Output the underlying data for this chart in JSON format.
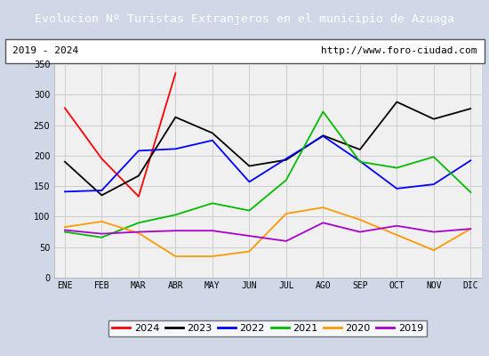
{
  "title": "Evolucion Nº Turistas Extranjeros en el municipio de Azuaga",
  "subtitle_left": "2019 - 2024",
  "subtitle_right": "http://www.foro-ciudad.com",
  "xlabel_months": [
    "ENE",
    "FEB",
    "MAR",
    "ABR",
    "MAY",
    "JUN",
    "JUL",
    "AGO",
    "SEP",
    "OCT",
    "NOV",
    "DIC"
  ],
  "ylim": [
    0,
    350
  ],
  "yticks": [
    0,
    50,
    100,
    150,
    200,
    250,
    300,
    350
  ],
  "series": {
    "2024": {
      "color": "#ff0000",
      "values": [
        278,
        195,
        133,
        335,
        null,
        null,
        null,
        null,
        null,
        null,
        null,
        null
      ]
    },
    "2023": {
      "color": "#000000",
      "values": [
        190,
        135,
        167,
        263,
        237,
        183,
        193,
        233,
        210,
        288,
        260,
        277
      ]
    },
    "2022": {
      "color": "#0000ff",
      "values": [
        141,
        143,
        208,
        211,
        225,
        157,
        195,
        232,
        191,
        146,
        153,
        192
      ]
    },
    "2021": {
      "color": "#00bb00",
      "values": [
        75,
        66,
        90,
        103,
        122,
        110,
        160,
        272,
        190,
        180,
        198,
        140
      ]
    },
    "2020": {
      "color": "#ff9900",
      "values": [
        83,
        92,
        73,
        35,
        35,
        43,
        105,
        115,
        95,
        70,
        45,
        80
      ]
    },
    "2019": {
      "color": "#aa00cc",
      "values": [
        78,
        72,
        75,
        77,
        77,
        null,
        60,
        90,
        75,
        85,
        75,
        80
      ]
    }
  },
  "title_bg_color": "#4472c4",
  "title_text_color": "#ffffff",
  "plot_bg_color": "#f0f0f0",
  "outer_bg_color": "#d0d8e8",
  "subtitle_bg_color": "#ffffff",
  "grid_color": "#cccccc",
  "legend_order": [
    "2024",
    "2023",
    "2022",
    "2021",
    "2020",
    "2019"
  ]
}
